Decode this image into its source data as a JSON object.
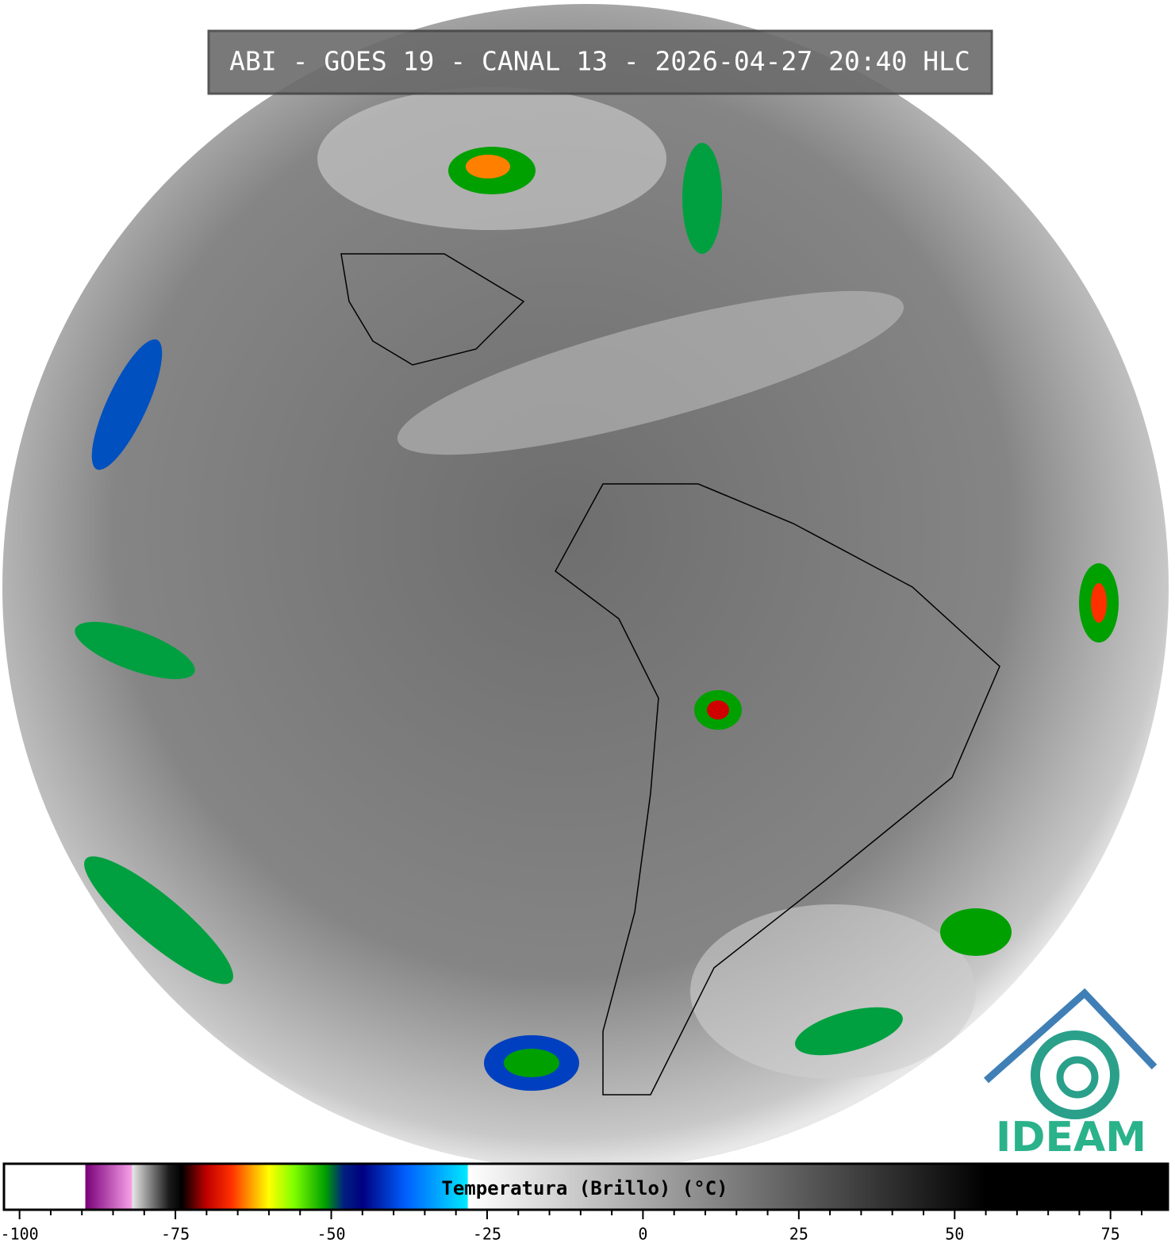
{
  "title": "ABI - GOES 19 - CANAL 13 - 2026-04-27 20:40 HLC",
  "logo": "IDEAM",
  "colorbar": {
    "label": "Temperatura (Brillo) (°C)",
    "xlim": [
      -102.5,
      84.2
    ],
    "xticks": [
      -100,
      -75,
      -50,
      -25,
      0,
      25,
      50,
      75
    ],
    "minor_ticks": [
      -95,
      -90,
      -85,
      -80,
      -70,
      -65,
      -60,
      -55,
      -45,
      -40,
      -35,
      -30,
      -20,
      -15,
      -10,
      -5,
      5,
      10,
      15,
      20,
      30,
      35,
      40,
      45,
      55,
      60,
      65,
      70,
      80
    ],
    "colormap": [
      {
        "value": -102.5,
        "color": "#ffffff"
      },
      {
        "value": -89.5,
        "color": "#ffffff"
      },
      {
        "value": -89.4,
        "color": "#7a007a"
      },
      {
        "value": -82,
        "color": "#f7a0e8"
      },
      {
        "value": -81.9,
        "color": "#e6e6e6"
      },
      {
        "value": -76,
        "color": "#1a1a1a"
      },
      {
        "value": -74,
        "color": "#000000"
      },
      {
        "value": -70,
        "color": "#c00000"
      },
      {
        "value": -66,
        "color": "#ff3000"
      },
      {
        "value": -63,
        "color": "#ff9a00"
      },
      {
        "value": -60,
        "color": "#ffff00"
      },
      {
        "value": -56,
        "color": "#80ff00"
      },
      {
        "value": -51,
        "color": "#00a000"
      },
      {
        "value": -48,
        "color": "#002080"
      },
      {
        "value": -45,
        "color": "#000080"
      },
      {
        "value": -38,
        "color": "#0060ff"
      },
      {
        "value": -28.2,
        "color": "#00e8ff"
      },
      {
        "value": -28,
        "color": "#ffffff"
      },
      {
        "value": 55,
        "color": "#000000"
      },
      {
        "value": 84.2,
        "color": "#000000"
      }
    ]
  }
}
